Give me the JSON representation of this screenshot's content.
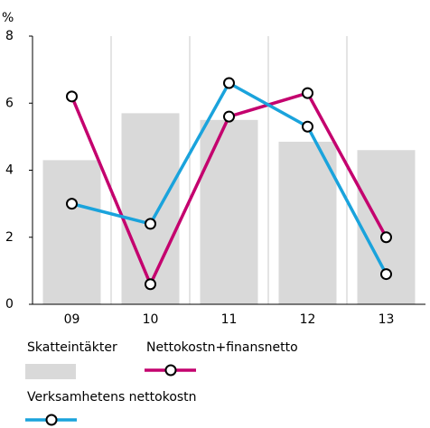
{
  "chart_data": {
    "type": "bar",
    "y_unit": "%",
    "categories": [
      "09",
      "10",
      "11",
      "12",
      "13"
    ],
    "series": [
      {
        "name": "Skatteintäkter",
        "type": "bar",
        "color": "#d9d9d9",
        "values": [
          4.3,
          5.7,
          5.5,
          4.85,
          4.6
        ]
      },
      {
        "name": "Nettokostn+finansnetto",
        "type": "line",
        "color": "#c4006e",
        "values": [
          6.2,
          0.6,
          5.6,
          6.3,
          2.0
        ]
      },
      {
        "name": "Verksamhetens nettokostn",
        "type": "line",
        "color": "#1aa3dc",
        "values": [
          3.0,
          2.4,
          6.6,
          5.3,
          0.9
        ]
      }
    ],
    "ylim": [
      0,
      8
    ],
    "yticks": [
      0,
      2,
      4,
      6,
      8
    ],
    "grid": true
  }
}
